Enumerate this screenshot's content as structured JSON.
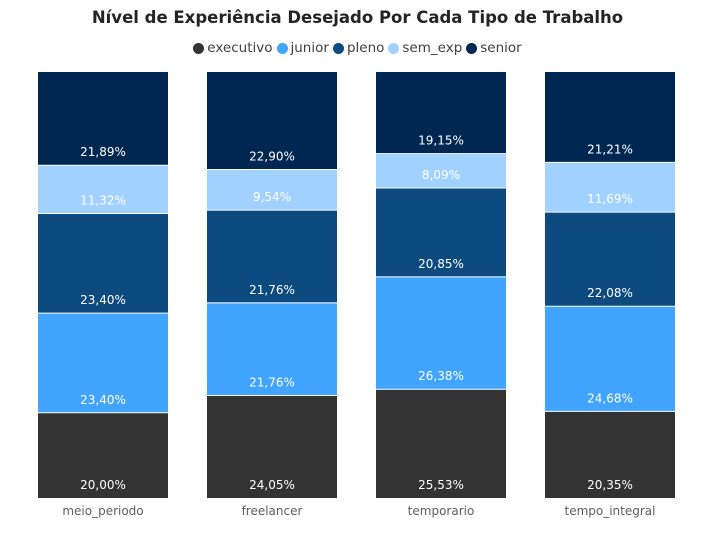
{
  "chart_data": {
    "type": "bar",
    "stacked": "100%",
    "title": "Nível de Experiência Desejado Por Cada Tipo de Trabalho",
    "xlabel": "",
    "ylabel": "",
    "categories": [
      "meio_periodo",
      "freelancer",
      "temporario",
      "tempo_integral"
    ],
    "legend_position": "top-center",
    "series": [
      {
        "name": "executivo",
        "color": "#333333",
        "label_color": "#ffffff",
        "values": [
          20.0,
          24.05,
          25.53,
          20.35
        ],
        "labels": [
          "20,00%",
          "24,05%",
          "25,53%",
          "20,35%"
        ]
      },
      {
        "name": "junior",
        "color": "#41A4FF",
        "label_color": "#ffffff",
        "values": [
          23.4,
          21.76,
          26.38,
          24.68
        ],
        "labels": [
          "23,40%",
          "21,76%",
          "26,38%",
          "24,68%"
        ]
      },
      {
        "name": "pleno",
        "color": "#0D4A80",
        "label_color": "#ffffff",
        "values": [
          23.4,
          21.76,
          20.85,
          22.08
        ],
        "labels": [
          "23,40%",
          "21,76%",
          "20,85%",
          "22,08%"
        ]
      },
      {
        "name": "sem_exp",
        "color": "#A0D1FF",
        "label_color": "#ffffff",
        "values": [
          11.32,
          9.54,
          8.09,
          11.69
        ],
        "labels": [
          "11,32%",
          "9,54%",
          "8,09%",
          "11,69%"
        ]
      },
      {
        "name": "senior",
        "color": "#002751",
        "label_color": "#ffffff",
        "values": [
          21.89,
          22.9,
          19.15,
          21.21
        ],
        "labels": [
          "21,89%",
          "22,90%",
          "19,15%",
          "21,21%"
        ]
      }
    ]
  }
}
